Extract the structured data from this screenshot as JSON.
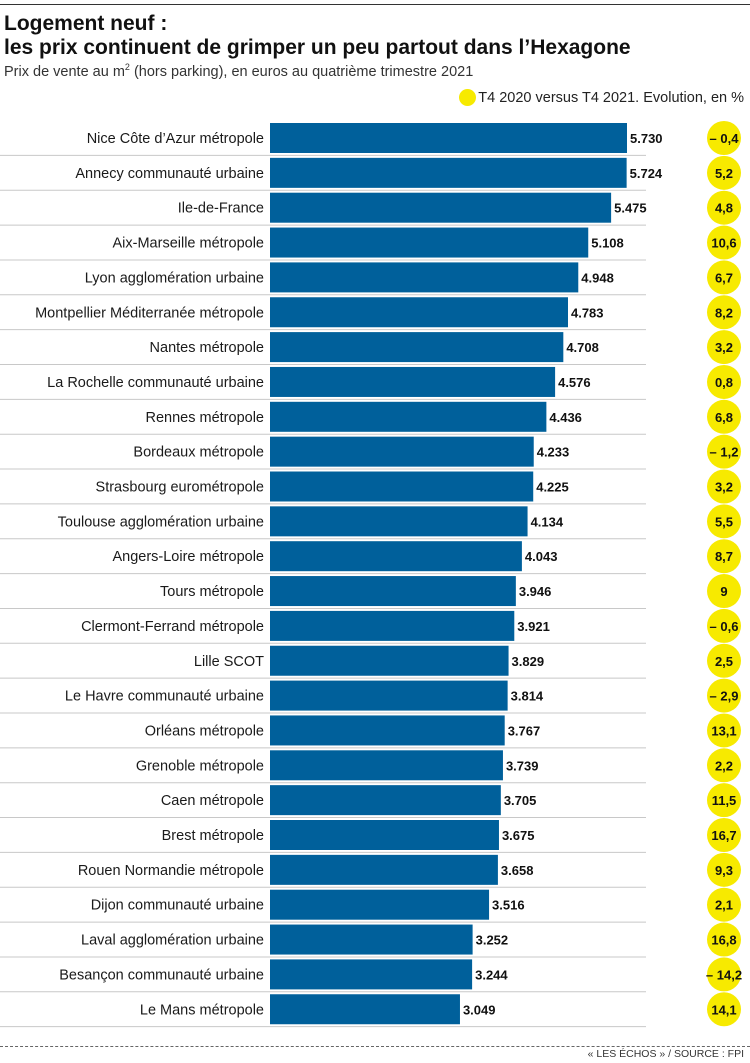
{
  "header": {
    "title_line1": "Logement neuf :",
    "title_line2": "les prix continuent de grimper un peu partout dans l’Hexagone",
    "subtitle_pre": "Prix de vente au m",
    "subtitle_sup": "2",
    "subtitle_post": " (hors parking), en euros au quatrième trimestre 2021"
  },
  "legend": {
    "label": "T4 2020 versus T4 2021. Evolution, en %"
  },
  "footer": {
    "source": "« LES ÉCHOS » / SOURCE : FPI"
  },
  "colors": {
    "bar": "#00609b",
    "badge": "#f7ea00",
    "grid": "#c8c8c8",
    "text": "#1a1a1a"
  },
  "chart_data": {
    "type": "bar",
    "orientation": "horizontal",
    "categories": [
      "Nice Côte d’Azur métropole",
      "Annecy communauté urbaine",
      "Ile-de-France",
      "Aix-Marseille métropole",
      "Lyon agglomération urbaine",
      "Montpellier Méditerranée métropole",
      "Nantes métropole",
      "La Rochelle communauté urbaine",
      "Rennes métropole",
      "Bordeaux métropole",
      "Strasbourg eurométropole",
      "Toulouse agglomération urbaine",
      "Angers-Loire métropole",
      "Tours métropole",
      "Clermont-Ferrand métropole",
      "Lille SCOT",
      "Le Havre communauté urbaine",
      "Orléans métropole",
      "Grenoble métropole",
      "Caen métropole",
      "Brest métropole",
      "Rouen Normandie métropole",
      "Dijon communauté urbaine",
      "Laval agglomération urbaine",
      "Besançon communauté urbaine",
      "Le Mans métropole"
    ],
    "values": [
      5730,
      5724,
      5475,
      5108,
      4948,
      4783,
      4708,
      4576,
      4436,
      4233,
      4225,
      4134,
      4043,
      3946,
      3921,
      3829,
      3814,
      3767,
      3739,
      3705,
      3675,
      3658,
      3516,
      3252,
      3244,
      3049
    ],
    "value_labels": [
      "5.730",
      "5.724",
      "5.475",
      "5.108",
      "4.948",
      "4.783",
      "4.708",
      "4.576",
      "4.436",
      "4.233",
      "4.225",
      "4.134",
      "4.043",
      "3.946",
      "3.921",
      "3.829",
      "3.814",
      "3.767",
      "3.739",
      "3.705",
      "3.675",
      "3.658",
      "3.516",
      "3.252",
      "3.244",
      "3.049"
    ],
    "evolution_labels": [
      "– 0,4",
      "5,2",
      "4,8",
      "10,6",
      "6,7",
      "8,2",
      "3,2",
      "0,8",
      "6,8",
      "– 1,2",
      "3,2",
      "5,5",
      "8,7",
      "9",
      "– 0,6",
      "2,5",
      "– 2,9",
      "13,1",
      "2,2",
      "11,5",
      "16,7",
      "9,3",
      "2,1",
      "16,8",
      "– 14,2",
      "14,1"
    ],
    "xlim": [
      0,
      5730
    ],
    "grid": true
  }
}
